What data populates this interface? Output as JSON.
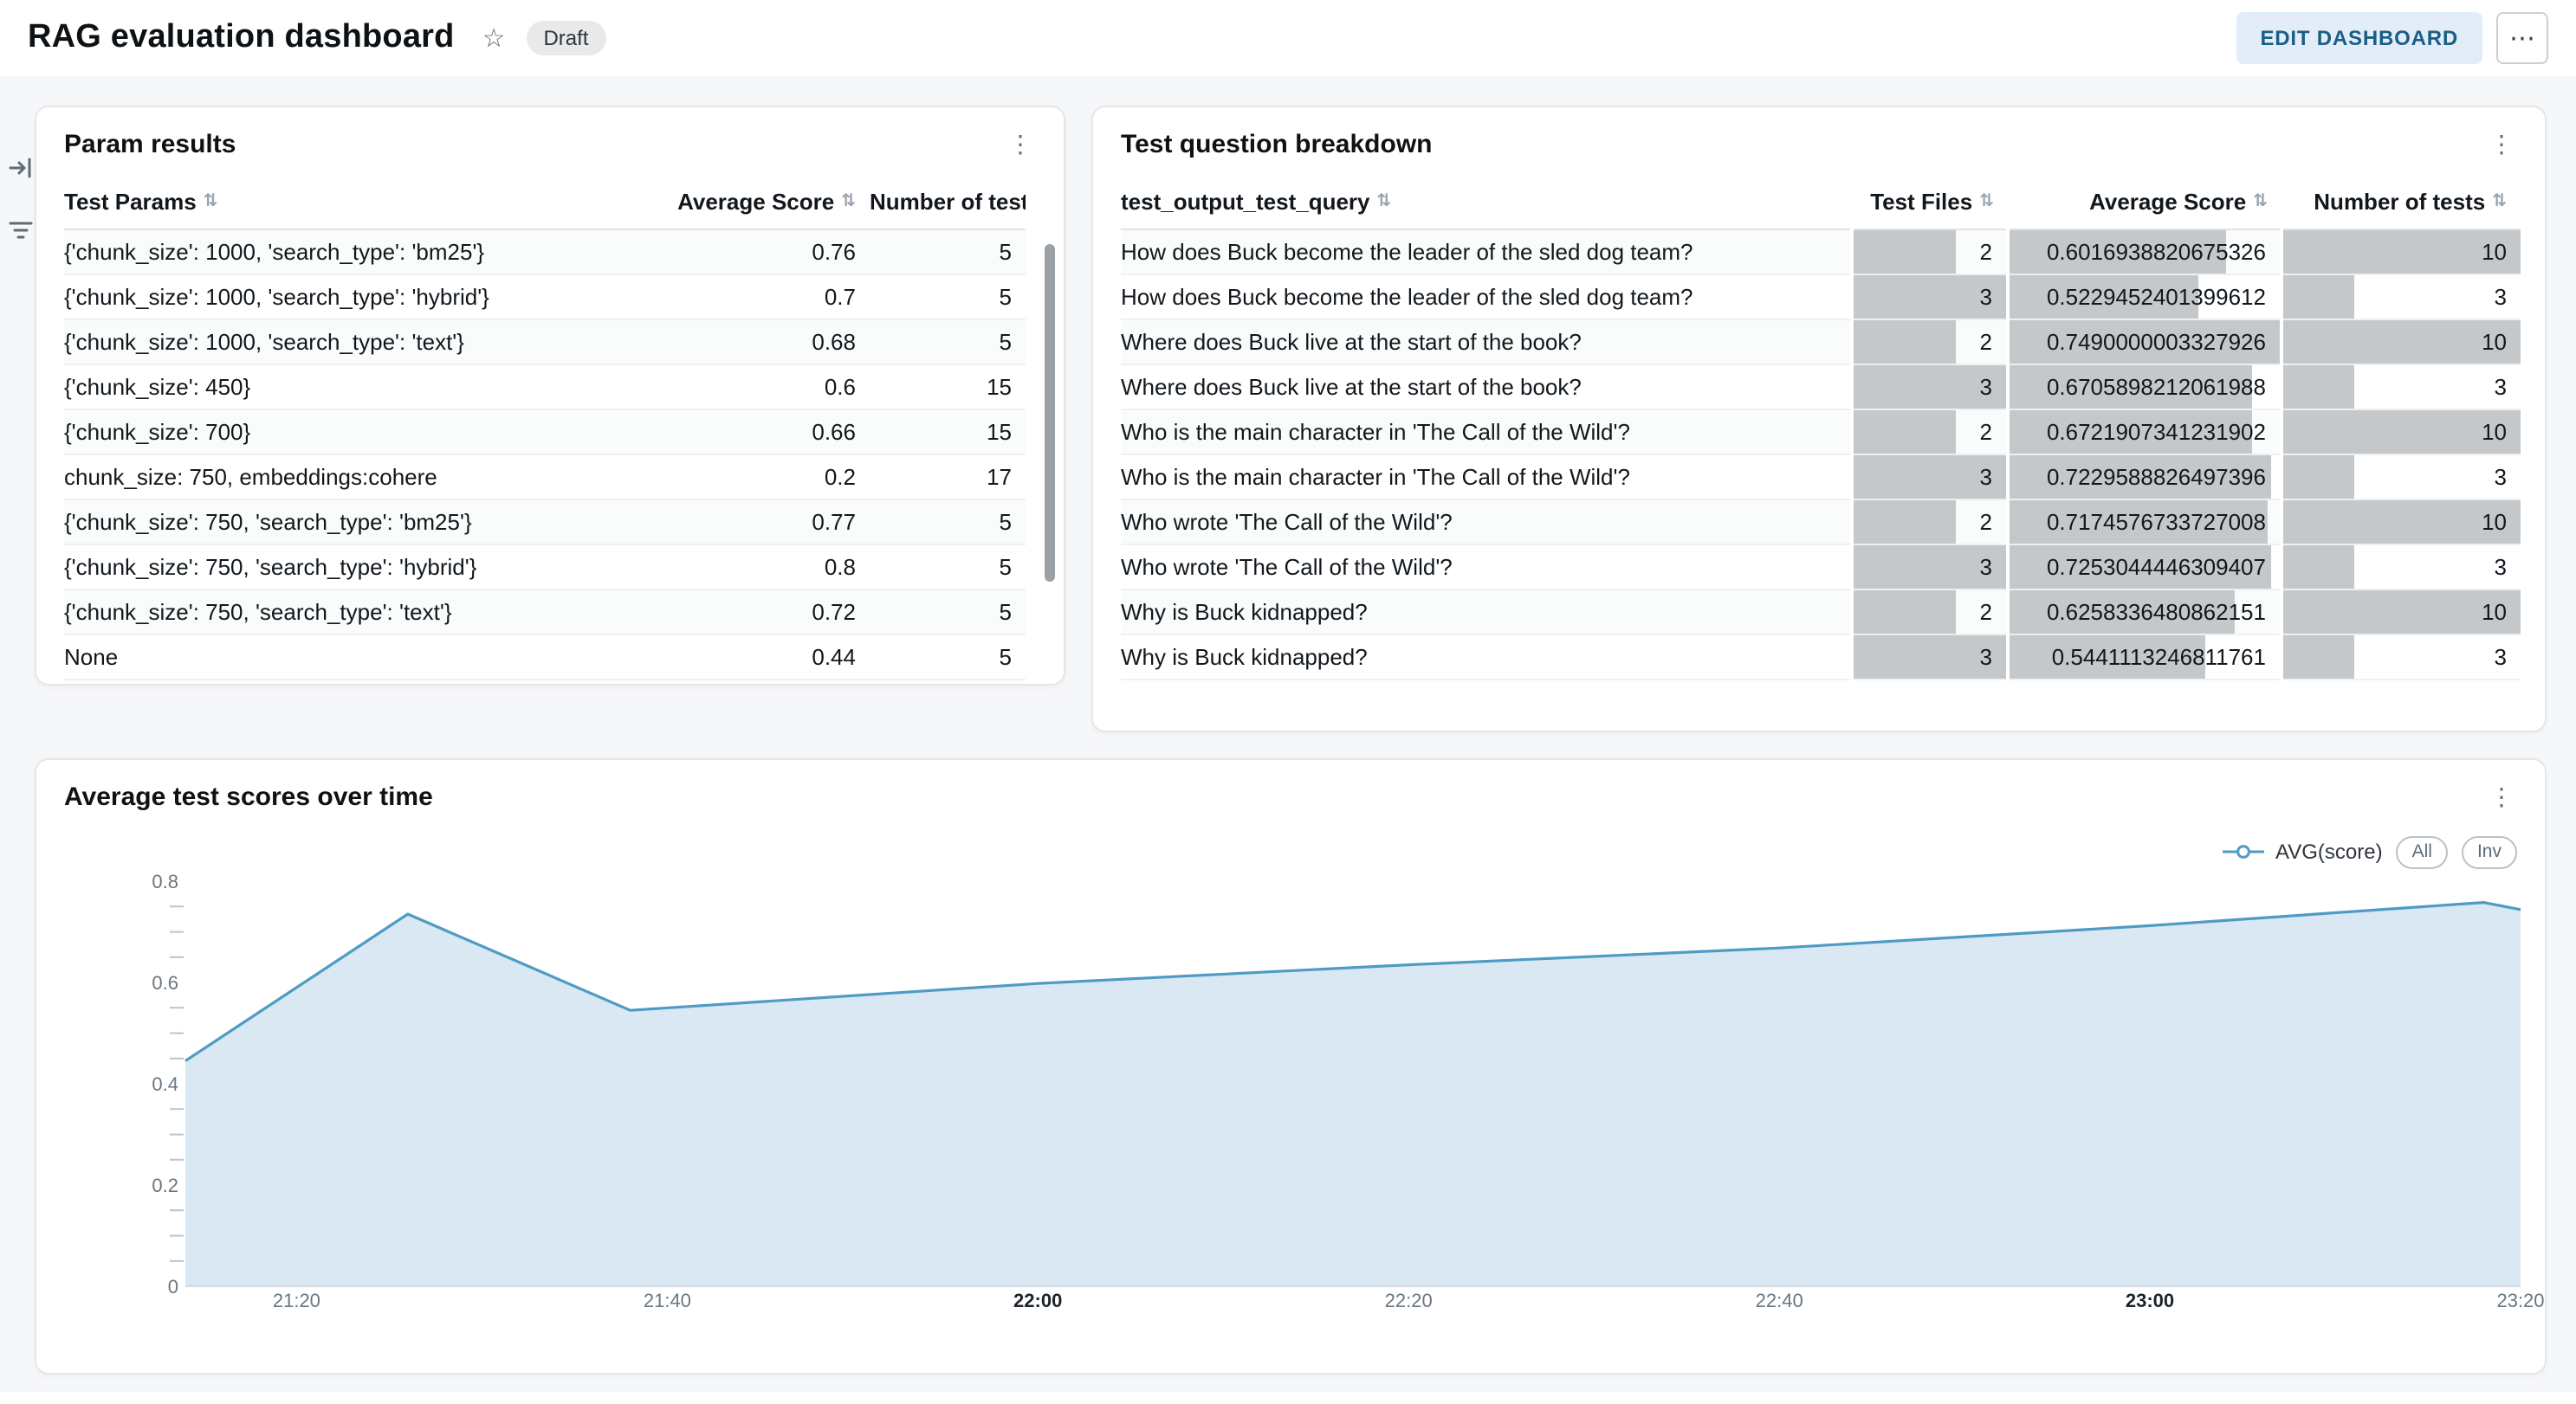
{
  "header": {
    "title": "RAG evaluation dashboard",
    "status_badge": "Draft",
    "edit_button": "EDIT DASHBOARD",
    "more_glyph": "⋯"
  },
  "icons": {
    "star": "☆",
    "kebab": "⋮",
    "sort": "⇅"
  },
  "param_results": {
    "title": "Param results",
    "columns": [
      "Test Params",
      "Average Score",
      "Number of tests"
    ],
    "rows": [
      {
        "params": "{'chunk_size': 1000, 'search_type': 'bm25'}",
        "avg_score": "0.76",
        "num_tests": "5"
      },
      {
        "params": "{'chunk_size': 1000, 'search_type': 'hybrid'}",
        "avg_score": "0.7",
        "num_tests": "5"
      },
      {
        "params": "{'chunk_size': 1000, 'search_type': 'text'}",
        "avg_score": "0.68",
        "num_tests": "5"
      },
      {
        "params": "{'chunk_size': 450}",
        "avg_score": "0.6",
        "num_tests": "15"
      },
      {
        "params": "{'chunk_size': 700}",
        "avg_score": "0.66",
        "num_tests": "15"
      },
      {
        "params": "chunk_size: 750, embeddings:cohere",
        "avg_score": "0.2",
        "num_tests": "17"
      },
      {
        "params": "{'chunk_size': 750, 'search_type': 'bm25'}",
        "avg_score": "0.77",
        "num_tests": "5"
      },
      {
        "params": "{'chunk_size': 750, 'search_type': 'hybrid'}",
        "avg_score": "0.8",
        "num_tests": "5"
      },
      {
        "params": "{'chunk_size': 750, 'search_type': 'text'}",
        "avg_score": "0.72",
        "num_tests": "5"
      },
      {
        "params": "None",
        "avg_score": "0.44",
        "num_tests": "5"
      }
    ]
  },
  "question_breakdown": {
    "title": "Test question breakdown",
    "columns": [
      "test_output_test_query",
      "Test Files",
      "Average Score",
      "Number of tests"
    ],
    "bar_color": "#c5c8ca",
    "bar_max": {
      "files": 3,
      "score": 0.7490000003327926,
      "tests": 10
    },
    "rows": [
      {
        "query": "How does Buck become the leader of the sled dog team?",
        "files": 2,
        "score": "0.6016938820675326",
        "tests": 10
      },
      {
        "query": "How does Buck become the leader of the sled dog team?",
        "files": 3,
        "score": "0.5229452401399612",
        "tests": 3
      },
      {
        "query": "Where does Buck live at the start of the book?",
        "files": 2,
        "score": "0.7490000003327926",
        "tests": 10
      },
      {
        "query": "Where does Buck live at the start of the book?",
        "files": 3,
        "score": "0.6705898212061988",
        "tests": 3
      },
      {
        "query": "Who is the main character in 'The Call of the Wild'?",
        "files": 2,
        "score": "0.6721907341231902",
        "tests": 10
      },
      {
        "query": "Who is the main character in 'The Call of the Wild'?",
        "files": 3,
        "score": "0.7229588826497396",
        "tests": 3
      },
      {
        "query": "Who wrote 'The Call of the Wild'?",
        "files": 2,
        "score": "0.7174576733727008",
        "tests": 10
      },
      {
        "query": "Who wrote 'The Call of the Wild'?",
        "files": 3,
        "score": "0.7253044446309407",
        "tests": 3
      },
      {
        "query": "Why is Buck kidnapped?",
        "files": 2,
        "score": "0.6258336480862151",
        "tests": 10
      },
      {
        "query": "Why is Buck kidnapped?",
        "files": 3,
        "score": "0.5441113246811761",
        "tests": 3
      }
    ]
  },
  "chart_card": {
    "title": "Average test scores over time",
    "legend_label": "AVG(score)",
    "buttons": [
      "All",
      "Inv"
    ]
  },
  "chart_data": {
    "type": "area",
    "title": "Average test scores over time",
    "xlabel": "",
    "ylabel": "",
    "ylim": [
      0,
      0.8
    ],
    "yticks": [
      0,
      0.2,
      0.4,
      0.6,
      0.8
    ],
    "y_minor_step": 0.05,
    "grid": false,
    "legend_position": "top-right",
    "line_color": "#4e9bc4",
    "fill_color": "#d9e8f2",
    "xticks": [
      {
        "label": "21:20",
        "bold": false
      },
      {
        "label": "21:40",
        "bold": false
      },
      {
        "label": "22:00",
        "bold": true
      },
      {
        "label": "22:20",
        "bold": false
      },
      {
        "label": "22:40",
        "bold": false
      },
      {
        "label": "23:00",
        "bold": true
      },
      {
        "label": "23:20",
        "bold": false
      }
    ],
    "series": [
      {
        "name": "AVG(score)",
        "points": [
          {
            "x": "21:14",
            "y": 0.445
          },
          {
            "x": "21:26",
            "y": 0.735
          },
          {
            "x": "21:38",
            "y": 0.545
          },
          {
            "x": "22:00",
            "y": 0.598
          },
          {
            "x": "22:20",
            "y": 0.635
          },
          {
            "x": "22:40",
            "y": 0.668
          },
          {
            "x": "23:00",
            "y": 0.712
          },
          {
            "x": "23:18",
            "y": 0.758
          },
          {
            "x": "23:20",
            "y": 0.744
          }
        ]
      }
    ]
  }
}
